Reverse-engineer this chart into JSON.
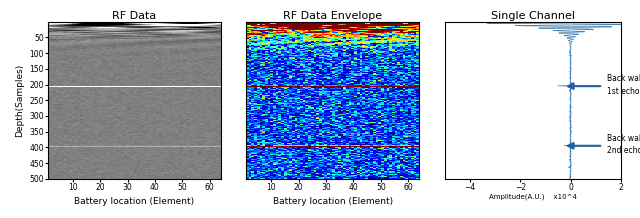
{
  "title1": "RF Data",
  "title2": "RF Data Envelope",
  "title3": "Single Channel",
  "xlabel": "Battery location (Element)",
  "ylabel1": "Depth(Samples)",
  "xlabel3": "Amplitude(A.U.)    x10^4",
  "xlim1": [
    1,
    64
  ],
  "ylim1": [
    500,
    0
  ],
  "xlim2": [
    1,
    64
  ],
  "ylim2": [
    500,
    0
  ],
  "xlim3": [
    -5,
    2
  ],
  "ylim3": [
    500,
    0
  ],
  "xticks1": [
    10,
    20,
    30,
    40,
    50,
    60
  ],
  "xticks2": [
    10,
    20,
    30,
    40,
    50,
    60
  ],
  "yticks": [
    50,
    100,
    150,
    200,
    250,
    300,
    350,
    400,
    450,
    500
  ],
  "backwall1_depth": 205,
  "backwall2_depth": 395,
  "arrow_color": "#2060A0",
  "title_fontsize": 8,
  "label_fontsize": 6.5,
  "tick_fontsize": 5.5
}
